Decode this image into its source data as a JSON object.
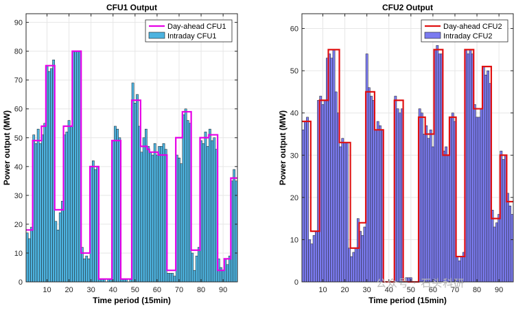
{
  "watermark": "公众号 · 石头科研",
  "colors": {
    "grid": "#e6e6e6",
    "axis": "#262626",
    "cfu1_bar": "#4db3e0",
    "cfu1_line": "#e600e6",
    "cfu2_bar": "#7b7bf0",
    "cfu2_line": "#e01010"
  },
  "chart_data": [
    {
      "type": "bar",
      "title": "CFU1 Output",
      "xlabel": "Time period (15min)",
      "ylabel": "Power output (MW)",
      "xlim": [
        0.5,
        96.5
      ],
      "ylim": [
        0,
        93
      ],
      "xticks": [
        10,
        20,
        30,
        40,
        50,
        60,
        70,
        80,
        90
      ],
      "xtick_labels": [
        "10",
        "20",
        "30",
        "40",
        "50",
        "60",
        "70",
        "80",
        "90"
      ],
      "yticks": [
        0,
        10,
        20,
        30,
        40,
        50,
        60,
        70,
        80,
        90
      ],
      "ytick_labels": [
        "0",
        "10",
        "20",
        "30",
        "40",
        "50",
        "60",
        "70",
        "80",
        "90"
      ],
      "grid": true,
      "legend_position": "top-right",
      "series": [
        {
          "name": "Day-ahead CFU1",
          "kind": "step-line",
          "values": [
            18,
            18,
            18,
            49,
            49,
            49,
            49,
            54,
            54,
            75,
            75,
            75,
            75,
            25,
            25,
            25,
            25,
            54,
            54,
            54,
            54,
            80,
            80,
            80,
            80,
            10,
            10,
            10,
            10,
            40,
            40,
            40,
            40,
            1,
            1,
            1,
            1,
            1,
            1,
            49,
            49,
            49,
            49,
            1,
            1,
            1,
            1,
            1,
            63,
            63,
            63,
            63,
            47,
            47,
            47,
            46,
            45,
            45,
            45,
            45,
            44,
            44,
            44,
            44,
            4,
            4,
            4,
            4,
            50,
            50,
            50,
            59,
            59,
            59,
            59,
            11,
            11,
            11,
            11,
            50,
            50,
            50,
            50,
            51,
            51,
            51,
            51,
            4,
            4,
            4,
            8,
            8,
            8,
            36,
            36,
            36
          ]
        },
        {
          "name": "Intraday CFU1",
          "kind": "bar",
          "values": [
            17,
            15,
            19,
            51,
            48,
            53,
            48,
            51,
            55,
            75,
            73,
            74,
            77,
            21,
            18,
            24,
            28,
            51,
            52,
            56,
            54,
            80,
            80,
            80,
            80,
            12,
            8,
            9,
            8,
            40,
            42,
            39,
            40,
            1,
            1,
            1,
            0,
            1,
            1,
            49,
            54,
            53,
            50,
            1,
            1,
            1,
            0,
            1,
            69,
            62,
            65,
            54,
            45,
            50,
            53,
            47,
            45,
            44,
            48,
            44,
            47,
            47,
            48,
            46,
            3,
            3,
            3,
            2,
            44,
            43,
            41,
            58,
            60,
            56,
            55,
            10,
            4,
            9,
            12,
            49,
            48,
            52,
            47,
            53,
            49,
            50,
            46,
            8,
            5,
            4,
            8,
            6,
            9,
            35,
            39,
            35
          ]
        }
      ]
    },
    {
      "type": "bar",
      "title": "CFU2 Output",
      "xlabel": "Time period (15min)",
      "ylabel": "Power output (MW)",
      "xlim": [
        0.5,
        96.5
      ],
      "ylim": [
        0,
        63.5
      ],
      "xticks": [
        10,
        20,
        30,
        40,
        50,
        60,
        70,
        80,
        90
      ],
      "xtick_labels": [
        "10",
        "20",
        "30",
        "40",
        "50",
        "60",
        "70",
        "80",
        "90"
      ],
      "yticks": [
        0,
        10,
        20,
        30,
        40,
        50,
        60
      ],
      "ytick_labels": [
        "0",
        "10",
        "20",
        "30",
        "40",
        "50",
        "60"
      ],
      "grid": true,
      "legend_position": "top-right",
      "series": [
        {
          "name": "Day-ahead CFU2",
          "kind": "step-line",
          "values": [
            38,
            38,
            38,
            38,
            12,
            12,
            12,
            12,
            43,
            43,
            43,
            43,
            55,
            55,
            55,
            55,
            55,
            33,
            33,
            33,
            33,
            33,
            8,
            8,
            8,
            8,
            14,
            14,
            14,
            45,
            45,
            45,
            45,
            36,
            36,
            36,
            36,
            0,
            0,
            0,
            0,
            0,
            43,
            43,
            43,
            43,
            0,
            0,
            0,
            0,
            0,
            0,
            0,
            39,
            39,
            39,
            35,
            35,
            35,
            35,
            55,
            55,
            55,
            55,
            30,
            30,
            30,
            39,
            39,
            39,
            6,
            6,
            6,
            6,
            55,
            55,
            55,
            55,
            41,
            41,
            41,
            41,
            51,
            51,
            51,
            51,
            15,
            15,
            15,
            15,
            30,
            30,
            30,
            19,
            19,
            19
          ]
        },
        {
          "name": "Intraday CFU2",
          "kind": "bar",
          "values": [
            36,
            38,
            39,
            10,
            9,
            11,
            12,
            43,
            44,
            42,
            43,
            53,
            54,
            53,
            55,
            45,
            40,
            32,
            34,
            33,
            33,
            8,
            6,
            7,
            8,
            15,
            12,
            11,
            13,
            54,
            46,
            44,
            43,
            36,
            38,
            37,
            36,
            0,
            0,
            0,
            0,
            0,
            44,
            41,
            40,
            41,
            0,
            1,
            1,
            1,
            0,
            0,
            0,
            41,
            40,
            35,
            37,
            34,
            36,
            32,
            55,
            56,
            54,
            54,
            31,
            32,
            30,
            39,
            40,
            38,
            6,
            5,
            6,
            7,
            55,
            54,
            55,
            54,
            42,
            39,
            39,
            41,
            51,
            49,
            50,
            47,
            17,
            13,
            14,
            16,
            31,
            29,
            30,
            21,
            18,
            16
          ]
        }
      ]
    }
  ]
}
